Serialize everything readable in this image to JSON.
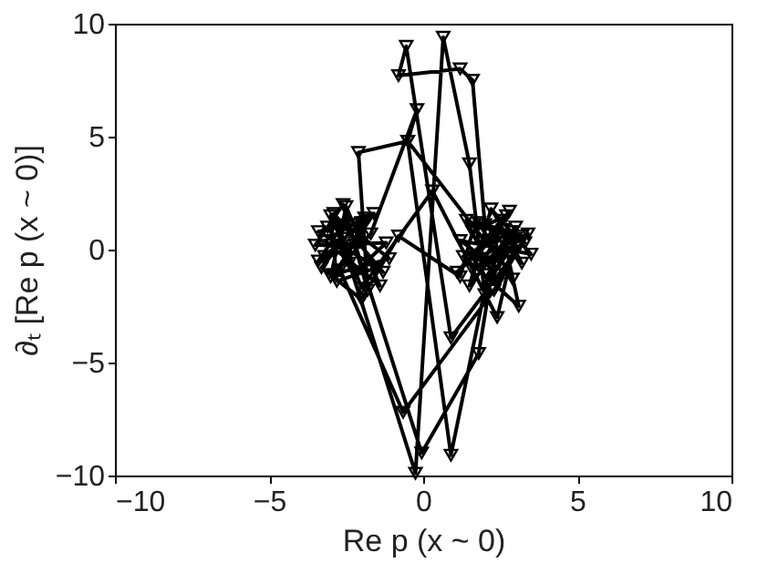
{
  "chart_data": {
    "type": "line",
    "xlabel": "Re p (x ~ 0)",
    "ylabel": "∂ₜ [Re p (x ~ 0)]",
    "xlim": [
      -10,
      10
    ],
    "ylim": [
      -10,
      10
    ],
    "xticks": [
      -10,
      -5,
      0,
      5,
      10
    ],
    "yticks": [
      -10,
      -5,
      0,
      5,
      10
    ],
    "grid": false,
    "marker": "triangle-down",
    "line_style": "solid",
    "series": [
      {
        "color": "#000000",
        "x": [
          -2.5,
          -3.2,
          -2.0,
          -3.4,
          -1.5,
          -2.8,
          -3.0,
          -2.2,
          -1.2,
          -3.5,
          -2.6,
          -1.8,
          -2.1,
          -0.5,
          2.5,
          3.2,
          1.8,
          2.9,
          1.2,
          3.5,
          2.2,
          1.5,
          3.0,
          2.0,
          1.5,
          0.65,
          -0.25,
          -2.4,
          -3.1,
          -1.6,
          -2.9,
          -1.1,
          -2.3,
          -3.3,
          -2.0,
          -0.8,
          1.2,
          1.6,
          2.7,
          1.9,
          3.3,
          1.4,
          2.4,
          3.0,
          0.9,
          -0.55,
          -0.8,
          1.2,
          1.6,
          2.0,
          3.2,
          2.6,
          1.1,
          2.8,
          1.7,
          3.4,
          2.3,
          -0.65,
          -2.7,
          -1.9,
          -3.2,
          -1.4,
          -2.5,
          -3.0,
          -1.7,
          -0.2,
          -0.5,
          0.9,
          2.1,
          2.9,
          1.3,
          3.1,
          2.5,
          1.8,
          -0.05,
          -2.2,
          -3.4,
          -2.6,
          -1.3,
          -2.9,
          -2.0,
          0.3,
          2.4,
          3.0,
          1.6
        ],
        "values": [
          0.5,
          -0.3,
          1.2,
          0.8,
          -0.8,
          -1.4,
          1.5,
          -1.0,
          0.3,
          0.2,
          2.0,
          -1.8,
          4.3,
          4.8,
          -0.5,
          0.6,
          1.2,
          -1.3,
          0.4,
          -0.2,
          1.8,
          -1.6,
          1.0,
          -2.0,
          3.8,
          9.4,
          -9.9,
          -0.6,
          1.0,
          1.6,
          -1.1,
          -0.4,
          0.9,
          -0.8,
          -2.2,
          0.6,
          -1.2,
          0.8,
          1.5,
          -0.7,
          0.3,
          1.3,
          -1.5,
          -0.1,
          -3.9,
          9.0,
          7.7,
          8.0,
          7.5,
          1.1,
          -0.6,
          0.9,
          -1.0,
          1.7,
          -0.4,
          0.7,
          -1.8,
          -7.2,
          -0.9,
          1.4,
          0.4,
          -1.6,
          1.9,
          -1.2,
          0.7,
          6.2,
          4.8,
          -9.1,
          -1.1,
          0.8,
          -0.3,
          -2.5,
          1.3,
          -4.6,
          -9.0,
          0.2,
          -0.5,
          1.1,
          -1.0,
          1.6,
          -1.7,
          2.6,
          -3.0,
          0.5,
          -0.9
        ]
      }
    ]
  }
}
